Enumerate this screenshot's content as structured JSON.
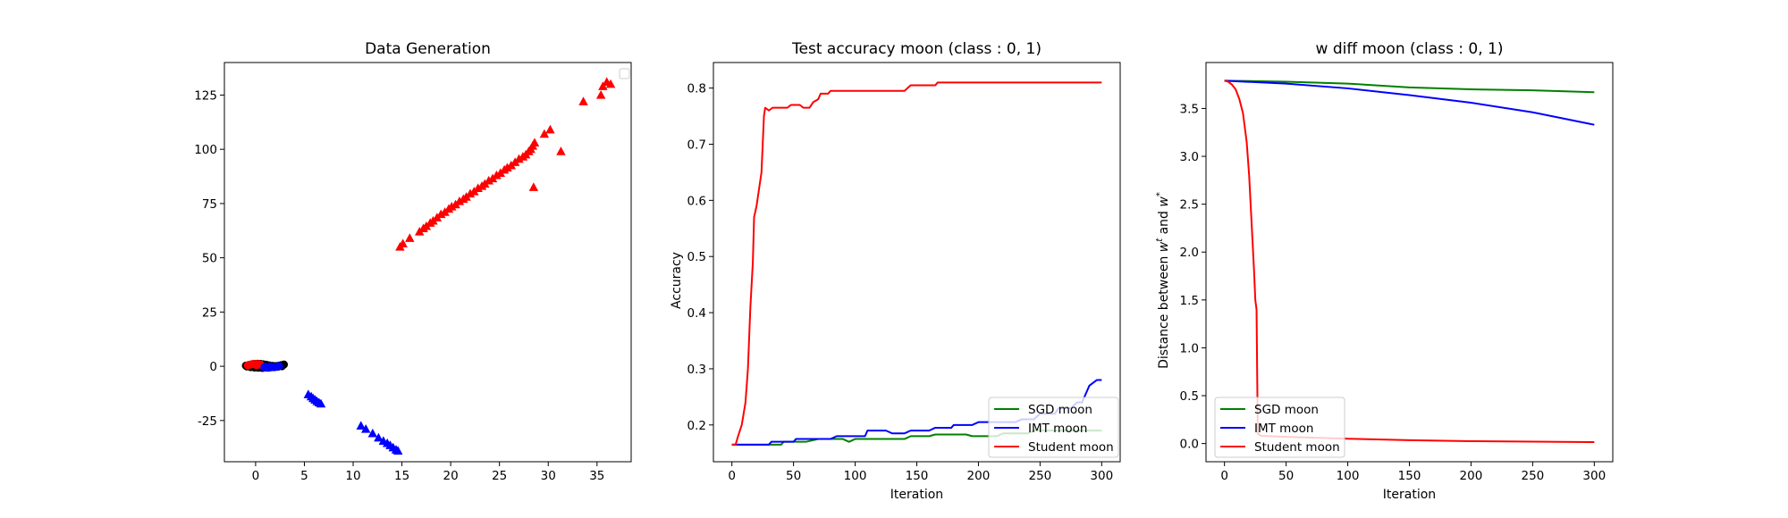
{
  "chart_data": [
    {
      "type": "scatter",
      "title": "Data Generation",
      "xlabel": "",
      "ylabel": "",
      "xlim": [
        -3.2,
        38.5
      ],
      "ylim": [
        -44,
        140
      ],
      "xticks": [
        0,
        5,
        10,
        15,
        20,
        25,
        30,
        35
      ],
      "yticks": [
        -25,
        0,
        25,
        50,
        75,
        100,
        125
      ],
      "legend": {
        "placement": "top-right",
        "entries": []
      },
      "series": [
        {
          "marker": "circle",
          "color": "#000000",
          "points": [
            [
              -1.0,
              0.3
            ],
            [
              -0.7,
              0.6
            ],
            [
              -0.4,
              0.9
            ],
            [
              -0.1,
              1.1
            ],
            [
              0.2,
              1.2
            ],
            [
              0.5,
              1.1
            ],
            [
              0.8,
              0.9
            ],
            [
              1.1,
              0.7
            ],
            [
              1.4,
              0.4
            ],
            [
              1.7,
              0.2
            ],
            [
              2.0,
              0.1
            ],
            [
              2.3,
              0.2
            ],
            [
              2.6,
              0.5
            ],
            [
              2.9,
              0.8
            ],
            [
              -0.9,
              -0.1
            ],
            [
              -0.5,
              -0.4
            ],
            [
              -0.1,
              -0.6
            ],
            [
              0.3,
              -0.7
            ],
            [
              0.7,
              -0.8
            ],
            [
              1.1,
              -0.6
            ],
            [
              1.5,
              -0.5
            ],
            [
              1.9,
              -0.4
            ],
            [
              2.3,
              -0.2
            ],
            [
              2.7,
              0.0
            ],
            [
              0.0,
              0.0
            ],
            [
              0.9,
              0.2
            ],
            [
              1.8,
              -0.1
            ],
            [
              2.5,
              0.3
            ]
          ]
        },
        {
          "marker": "circle",
          "color": "#ff0000",
          "points": [
            [
              -0.6,
              0.7
            ],
            [
              -0.3,
              1.0
            ],
            [
              0.0,
              1.1
            ],
            [
              0.3,
              1.0
            ],
            [
              -0.8,
              0.4
            ],
            [
              0.1,
              0.5
            ],
            [
              0.5,
              0.8
            ]
          ]
        },
        {
          "marker": "circle",
          "color": "#0000ff",
          "points": [
            [
              0.9,
              -0.5
            ],
            [
              1.3,
              -0.7
            ],
            [
              1.7,
              -0.4
            ],
            [
              2.1,
              -0.3
            ],
            [
              1.0,
              -0.2
            ],
            [
              1.5,
              -0.1
            ],
            [
              2.4,
              0.1
            ]
          ]
        },
        {
          "marker": "triangle",
          "color": "#ff0000",
          "points": [
            [
              14.8,
              55
            ],
            [
              15.1,
              56.5
            ],
            [
              15.8,
              59
            ],
            [
              16.8,
              62
            ],
            [
              17.2,
              63.5
            ],
            [
              17.5,
              64.5
            ],
            [
              17.9,
              66
            ],
            [
              18.2,
              67
            ],
            [
              18.6,
              68.5
            ],
            [
              19.0,
              70
            ],
            [
              19.4,
              71
            ],
            [
              19.8,
              72.5
            ],
            [
              20.1,
              73.5
            ],
            [
              20.5,
              74.5
            ],
            [
              20.9,
              76
            ],
            [
              21.3,
              77
            ],
            [
              21.6,
              78
            ],
            [
              22.0,
              79.5
            ],
            [
              22.4,
              80.5
            ],
            [
              22.8,
              82
            ],
            [
              23.2,
              83
            ],
            [
              23.5,
              84
            ],
            [
              23.9,
              85.5
            ],
            [
              24.3,
              86.5
            ],
            [
              24.7,
              88
            ],
            [
              25.1,
              89
            ],
            [
              25.5,
              90.5
            ],
            [
              25.8,
              91.5
            ],
            [
              26.2,
              92.5
            ],
            [
              26.6,
              94
            ],
            [
              27.0,
              95.5
            ],
            [
              27.4,
              96.5
            ],
            [
              27.7,
              97.5
            ],
            [
              28.0,
              99
            ],
            [
              28.2,
              100
            ],
            [
              28.4,
              101.5
            ],
            [
              28.6,
              103
            ],
            [
              28.5,
              82.5
            ],
            [
              29.6,
              107
            ],
            [
              30.2,
              109
            ],
            [
              31.3,
              99
            ],
            [
              33.6,
              122
            ],
            [
              35.4,
              125
            ],
            [
              35.6,
              129
            ],
            [
              36.0,
              131
            ],
            [
              36.4,
              130
            ]
          ]
        },
        {
          "marker": "triangle",
          "color": "#0000ff",
          "points": [
            [
              5.4,
              -13
            ],
            [
              5.7,
              -14
            ],
            [
              5.9,
              -14.8
            ],
            [
              6.1,
              -15.5
            ],
            [
              6.3,
              -16.2
            ],
            [
              6.5,
              -16.8
            ],
            [
              6.7,
              -17.3
            ],
            [
              10.8,
              -27.5
            ],
            [
              11.3,
              -29
            ],
            [
              12.0,
              -31
            ],
            [
              12.6,
              -33
            ],
            [
              13.1,
              -34.5
            ],
            [
              13.5,
              -35.5
            ],
            [
              13.8,
              -36.5
            ],
            [
              14.1,
              -37.5
            ],
            [
              14.4,
              -38.5
            ],
            [
              14.6,
              -39
            ]
          ]
        }
      ]
    },
    {
      "type": "line",
      "title": "Test accuracy moon (class : 0, 1)",
      "xlabel": "Iteration",
      "ylabel": "Accuracy",
      "xlim": [
        -15,
        315
      ],
      "ylim": [
        0.1345,
        0.8455
      ],
      "xticks": [
        0,
        50,
        100,
        150,
        200,
        250,
        300
      ],
      "yticks": [
        0.2,
        0.3,
        0.4,
        0.5,
        0.6,
        0.7,
        0.8
      ],
      "legend": {
        "placement": "lower-right"
      },
      "series": [
        {
          "name": "SGD moon",
          "color": "#008000",
          "points": [
            [
              0,
              0.165
            ],
            [
              20,
              0.165
            ],
            [
              40,
              0.165
            ],
            [
              42,
              0.17
            ],
            [
              60,
              0.17
            ],
            [
              70,
              0.175
            ],
            [
              90,
              0.175
            ],
            [
              95,
              0.17
            ],
            [
              100,
              0.175
            ],
            [
              140,
              0.175
            ],
            [
              145,
              0.18
            ],
            [
              160,
              0.18
            ],
            [
              165,
              0.183
            ],
            [
              190,
              0.183
            ],
            [
              195,
              0.18
            ],
            [
              215,
              0.18
            ],
            [
              220,
              0.185
            ],
            [
              240,
              0.185
            ],
            [
              245,
              0.19
            ],
            [
              300,
              0.19
            ]
          ]
        },
        {
          "name": "IMT moon",
          "color": "#0000ff",
          "points": [
            [
              0,
              0.165
            ],
            [
              30,
              0.165
            ],
            [
              32,
              0.17
            ],
            [
              50,
              0.17
            ],
            [
              52,
              0.175
            ],
            [
              80,
              0.175
            ],
            [
              85,
              0.18
            ],
            [
              108,
              0.18
            ],
            [
              110,
              0.19
            ],
            [
              125,
              0.19
            ],
            [
              130,
              0.185
            ],
            [
              140,
              0.185
            ],
            [
              145,
              0.19
            ],
            [
              160,
              0.19
            ],
            [
              165,
              0.195
            ],
            [
              178,
              0.195
            ],
            [
              180,
              0.2
            ],
            [
              195,
              0.2
            ],
            [
              200,
              0.205
            ],
            [
              230,
              0.205
            ],
            [
              235,
              0.21
            ],
            [
              245,
              0.21
            ],
            [
              250,
              0.22
            ],
            [
              262,
              0.22
            ],
            [
              265,
              0.23
            ],
            [
              275,
              0.23
            ],
            [
              280,
              0.24
            ],
            [
              284,
              0.24
            ],
            [
              287,
              0.255
            ],
            [
              290,
              0.27
            ],
            [
              293,
              0.275
            ],
            [
              296,
              0.28
            ],
            [
              300,
              0.28
            ]
          ]
        },
        {
          "name": "Student moon",
          "color": "#ff0000",
          "points": [
            [
              0,
              0.165
            ],
            [
              3,
              0.165
            ],
            [
              5,
              0.18
            ],
            [
              8,
              0.2
            ],
            [
              11,
              0.24
            ],
            [
              13,
              0.3
            ],
            [
              15,
              0.41
            ],
            [
              17,
              0.49
            ],
            [
              18,
              0.57
            ],
            [
              20,
              0.59
            ],
            [
              22,
              0.62
            ],
            [
              24,
              0.65
            ],
            [
              25,
              0.7
            ],
            [
              26,
              0.75
            ],
            [
              27,
              0.765
            ],
            [
              30,
              0.76
            ],
            [
              33,
              0.765
            ],
            [
              45,
              0.765
            ],
            [
              48,
              0.77
            ],
            [
              55,
              0.77
            ],
            [
              58,
              0.765
            ],
            [
              63,
              0.765
            ],
            [
              66,
              0.775
            ],
            [
              70,
              0.78
            ],
            [
              72,
              0.79
            ],
            [
              78,
              0.79
            ],
            [
              80,
              0.795
            ],
            [
              140,
              0.795
            ],
            [
              145,
              0.805
            ],
            [
              165,
              0.805
            ],
            [
              167,
              0.81
            ],
            [
              300,
              0.81
            ]
          ]
        }
      ]
    },
    {
      "type": "line",
      "title": "w diff moon (class : 0, 1)",
      "xlabel": "Iteration",
      "ylabel": "Distance between w^t and w^*",
      "xlim": [
        -15,
        315
      ],
      "ylim": [
        -0.19,
        3.98
      ],
      "xticks": [
        0,
        50,
        100,
        150,
        200,
        250,
        300
      ],
      "yticks": [
        0.0,
        0.5,
        1.0,
        1.5,
        2.0,
        2.5,
        3.0,
        3.5
      ],
      "legend": {
        "placement": "lower-left"
      },
      "series": [
        {
          "name": "SGD moon",
          "color": "#008000",
          "points": [
            [
              0,
              3.79
            ],
            [
              50,
              3.78
            ],
            [
              100,
              3.76
            ],
            [
              150,
              3.72
            ],
            [
              200,
              3.7
            ],
            [
              250,
              3.69
            ],
            [
              300,
              3.67
            ]
          ]
        },
        {
          "name": "IMT moon",
          "color": "#0000ff",
          "points": [
            [
              0,
              3.79
            ],
            [
              50,
              3.76
            ],
            [
              100,
              3.71
            ],
            [
              150,
              3.64
            ],
            [
              200,
              3.56
            ],
            [
              250,
              3.46
            ],
            [
              300,
              3.33
            ]
          ]
        },
        {
          "name": "Student moon",
          "color": "#ff0000",
          "points": [
            [
              0,
              3.79
            ],
            [
              3,
              3.78
            ],
            [
              6,
              3.75
            ],
            [
              9,
              3.7
            ],
            [
              12,
              3.6
            ],
            [
              15,
              3.45
            ],
            [
              18,
              3.15
            ],
            [
              20,
              2.8
            ],
            [
              22,
              2.3
            ],
            [
              24,
              1.8
            ],
            [
              25,
              1.5
            ],
            [
              26,
              1.4
            ],
            [
              27,
              0.1
            ],
            [
              30,
              0.08
            ],
            [
              50,
              0.07
            ],
            [
              100,
              0.05
            ],
            [
              150,
              0.035
            ],
            [
              200,
              0.025
            ],
            [
              250,
              0.02
            ],
            [
              300,
              0.015
            ]
          ]
        }
      ]
    }
  ]
}
